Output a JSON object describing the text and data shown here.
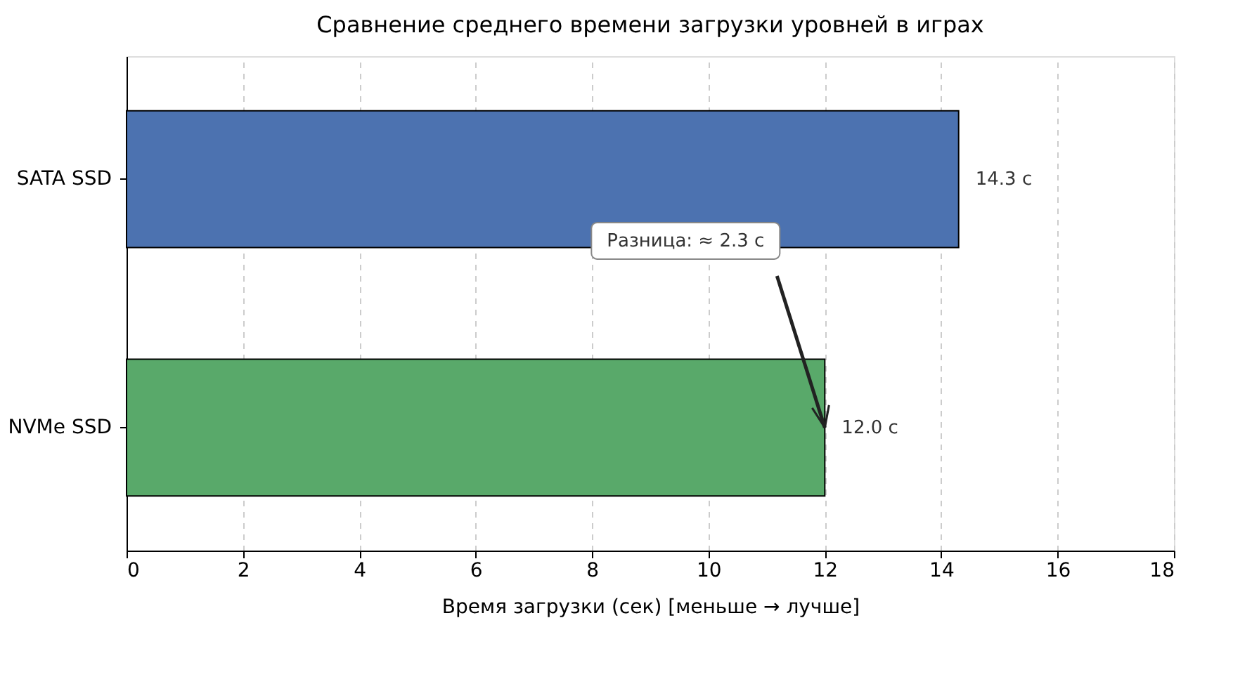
{
  "chart_data": {
    "type": "bar",
    "orientation": "horizontal",
    "title": "Сравнение среднего времени загрузки уровней в играх",
    "xlabel": "Время загрузки (сек) [меньше → лучше]",
    "categories": [
      "SATA SSD",
      "NVMe SSD"
    ],
    "values": [
      14.3,
      12.0
    ],
    "colors": [
      "#4c72b0",
      "#59a96a"
    ],
    "value_labels": [
      "14.3 с",
      "12.0 с"
    ],
    "xlim": [
      0,
      18
    ],
    "xticks": [
      0,
      2,
      4,
      6,
      8,
      10,
      12,
      14,
      16,
      18
    ],
    "grid": "x",
    "annotations": [
      "Разница: ≈ 2.3 с"
    ]
  }
}
